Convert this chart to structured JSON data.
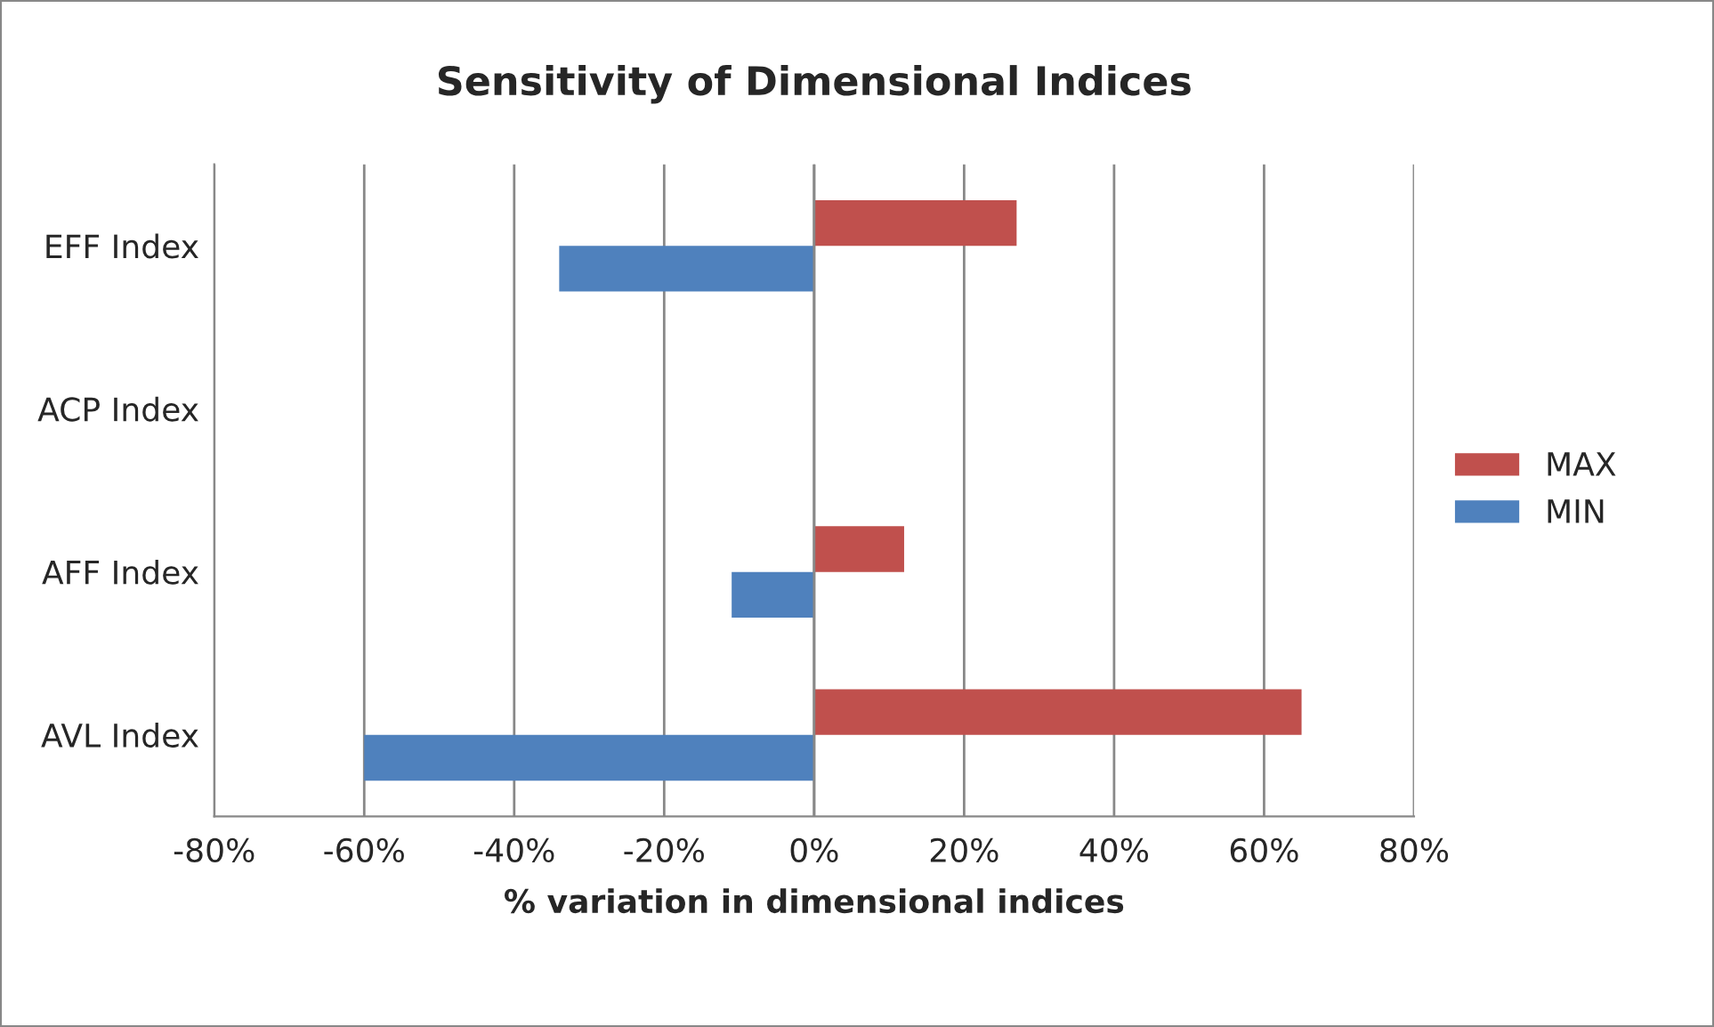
{
  "chart_data": {
    "type": "bar",
    "orientation": "horizontal",
    "title": "Sensitivity of Dimensional Indices",
    "xlabel": "% variation in dimensional indices",
    "categories": [
      "EFF Index",
      "ACP Index",
      "AFF Index",
      "AVL Index"
    ],
    "series": [
      {
        "name": "MAX",
        "color": "#c0504d",
        "values": [
          27,
          0,
          12,
          65
        ]
      },
      {
        "name": "MIN",
        "color": "#4f81bd",
        "values": [
          -34,
          0,
          -11,
          -60
        ]
      }
    ],
    "xlim": [
      -80,
      80
    ],
    "xticks": [
      {
        "value": -80,
        "label": "-80%"
      },
      {
        "value": -60,
        "label": "-60%"
      },
      {
        "value": -40,
        "label": "-40%"
      },
      {
        "value": -20,
        "label": "-20%"
      },
      {
        "value": 0,
        "label": "0%"
      },
      {
        "value": 20,
        "label": "20%"
      },
      {
        "value": 40,
        "label": "40%"
      },
      {
        "value": 60,
        "label": "60%"
      },
      {
        "value": 80,
        "label": "80%"
      }
    ],
    "grid": "x",
    "legend": "right"
  }
}
